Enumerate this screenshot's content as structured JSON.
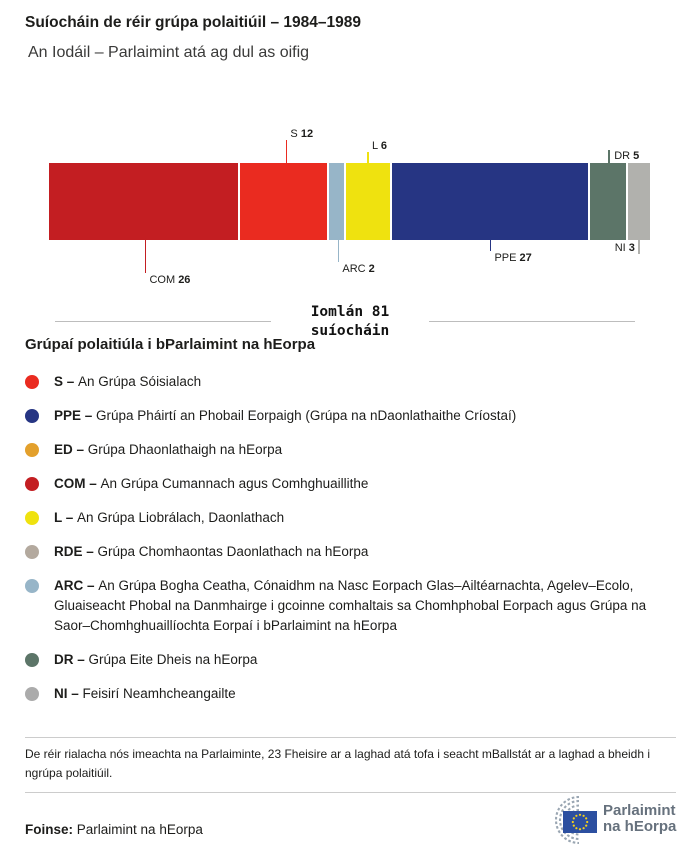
{
  "header": {
    "title": "Suíocháin de réir grúpa polaitiúil – 1984–1989",
    "subtitle": "An Iodáil – Parlaimint atá ag dul as oifig"
  },
  "chart_data": {
    "type": "bar",
    "variant": "single-row-stacked-horizontal",
    "title": "Suíocháin de réir grúpa polaitiúil – 1984–1989",
    "subtitle": "An Iodáil – Parlaimint atá ag dul as oifig",
    "total_seats": 81,
    "total_label": {
      "line1": "Iomlán 81",
      "line2": "suíocháin"
    },
    "categories": [
      "COM",
      "S",
      "ARC",
      "L",
      "PPE",
      "DR",
      "NI"
    ],
    "values": [
      26,
      12,
      2,
      6,
      27,
      5,
      3
    ],
    "segments": [
      {
        "code": "COM",
        "seats": 26,
        "color": "#c31e22",
        "label_position": "below"
      },
      {
        "code": "S",
        "seats": 12,
        "color": "#ea2b20",
        "label_position": "above"
      },
      {
        "code": "ARC",
        "seats": 2,
        "color": "#97b5c8",
        "label_position": "below"
      },
      {
        "code": "L",
        "seats": 6,
        "color": "#efe20f",
        "label_position": "above"
      },
      {
        "code": "PPE",
        "seats": 27,
        "color": "#263583",
        "label_position": "below"
      },
      {
        "code": "DR",
        "seats": 5,
        "color": "#5c7568",
        "label_position": "above"
      },
      {
        "code": "NI",
        "seats": 3,
        "color": "#b1b1ad",
        "label_position": "below"
      }
    ],
    "grid": false,
    "legend_position": "below"
  },
  "legend": {
    "heading": "Grúpaí polaitiúla i bParlaimint na hEorpa",
    "items": [
      {
        "code_label": "S –",
        "description": "An Grúpa Sóisialach",
        "color": "#ea2b20"
      },
      {
        "code_label": "PPE –",
        "description": "Grúpa Pháirtí an Phobail Eorpaigh (Grúpa na nDaonlathaithe Críostaí)",
        "color": "#263583"
      },
      {
        "code_label": "ED –",
        "description": "Grúpa Dhaonlathaigh na hEorpa",
        "color": "#e3a02c"
      },
      {
        "code_label": "COM –",
        "description": "An Grúpa Cumannach agus Comhghuaillithe",
        "color": "#c31e22"
      },
      {
        "code_label": "L –",
        "description": "An Grúpa Liobrálach, Daonlathach",
        "color": "#efe20f"
      },
      {
        "code_label": "RDE –",
        "description": "Grúpa Chomhaontas Daonlathach na hEorpa",
        "color": "#b3a99e"
      },
      {
        "code_label": "ARC –",
        "description": "An Grúpa Bogha Ceatha, Cónaidhm na Nasc Eorpach Glas–Ailtéarnachta, Agelev–Ecolo, Gluaiseacht Phobal na Danmhairge i gcoinne comhaltais sa Chomhphobal Eorpach agus Grúpa na Saor–Chomhghuaillíochta Eorpaí i bParlaimint na hEorpa",
        "color": "#97b5c8"
      },
      {
        "code_label": "DR –",
        "description": "Grúpa Eite Dheis na hEorpa",
        "color": "#5c7568"
      },
      {
        "code_label": "NI –",
        "description": "Feisirí Neamhcheangailte",
        "color": "#ababab"
      }
    ]
  },
  "note": "De réir rialacha nós imeachta na Parlaiminte, 23 Fheisire ar a laghad atá tofa i seacht mBallstát ar a laghad a bheidh i ngrúpa polaitiúil.",
  "source": {
    "label": "Foinse:",
    "value": "Parlaimint na hEorpa"
  },
  "logo": {
    "line1": "Parlaimint",
    "line2": "na hEorpa",
    "flag_color": "#2c4fa0",
    "star_color": "#f7d117",
    "hemicycle_color": "#9aa6b2",
    "text_color": "#66717d"
  }
}
